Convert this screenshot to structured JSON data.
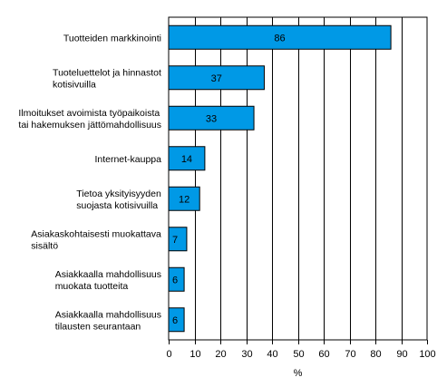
{
  "chart_data": {
    "type": "bar",
    "orientation": "horizontal",
    "categories": [
      [
        "Tuotteiden markkinointi"
      ],
      [
        "Tuoteluettelot ja hinnastot",
        "kotisivuilla"
      ],
      [
        "Ilmoitukset avoimista työpaikoista",
        "tai hakemuksen jättömahdollisuus"
      ],
      [
        "Internet-kauppa"
      ],
      [
        "Tietoa yksityisyyden",
        "suojasta kotisivuilla"
      ],
      [
        "Asiakaskohtaisesti muokattava",
        "sisältö"
      ],
      [
        "Asiakkaalla mahdollisuus",
        "muokata tuotteita"
      ],
      [
        "Asiakkaalla mahdollisuus",
        "tilausten seurantaan"
      ]
    ],
    "values": [
      86,
      37,
      33,
      14,
      12,
      7,
      6,
      6
    ],
    "data_labels": [
      "86",
      "37",
      "33",
      "14",
      "12",
      "7",
      "6",
      "6"
    ],
    "xlabel": "%",
    "xlim": [
      0,
      100
    ],
    "xticks": [
      0,
      10,
      20,
      30,
      40,
      50,
      60,
      70,
      80,
      90,
      100
    ],
    "grid": "vertical",
    "bar_color": "#0099e6",
    "bar_stroke": "#000000"
  }
}
